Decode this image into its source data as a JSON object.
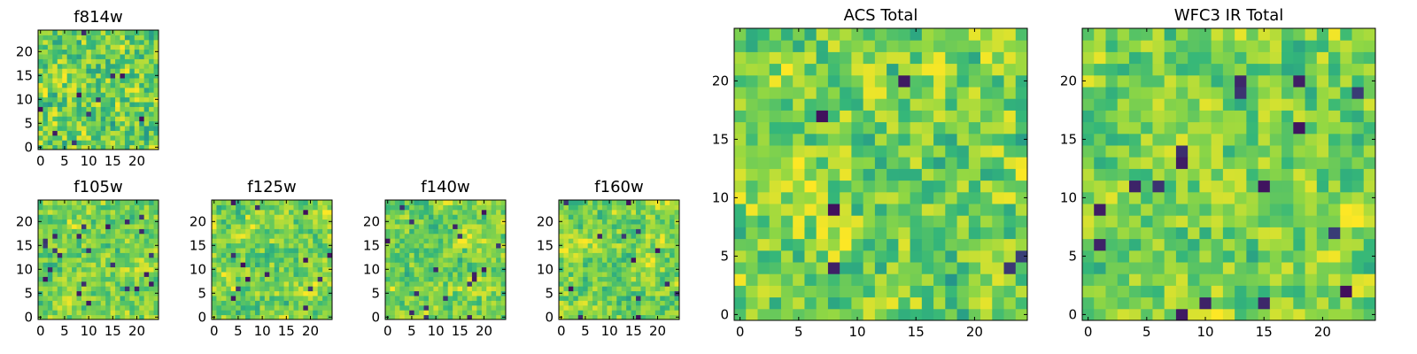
{
  "figure": {
    "type": "heatmap-grid",
    "colormap": "viridis",
    "palette": [
      "#440154",
      "#31688e",
      "#21908d",
      "#35b779",
      "#90d743",
      "#fde725"
    ]
  },
  "chart_data": [
    {
      "type": "heatmap",
      "title": "f814w",
      "grid_size": [
        25,
        25
      ],
      "xlim": [
        0,
        24
      ],
      "ylim": [
        0,
        24
      ],
      "xticks": [
        0,
        5,
        10,
        15,
        20
      ],
      "yticks": [
        0,
        5,
        10,
        15,
        20
      ],
      "value_range": [
        0,
        1
      ],
      "seed": 814,
      "texture": 0.55
    },
    {
      "type": "heatmap",
      "title": "f105w",
      "grid_size": [
        25,
        25
      ],
      "xlim": [
        0,
        24
      ],
      "ylim": [
        0,
        24
      ],
      "xticks": [
        0,
        5,
        10,
        15,
        20
      ],
      "yticks": [
        0,
        5,
        10,
        15,
        20
      ],
      "value_range": [
        0,
        1
      ],
      "seed": 105,
      "texture": 0.35
    },
    {
      "type": "heatmap",
      "title": "f125w",
      "grid_size": [
        25,
        25
      ],
      "xlim": [
        0,
        24
      ],
      "ylim": [
        0,
        24
      ],
      "xticks": [
        0,
        5,
        10,
        15,
        20
      ],
      "yticks": [
        0,
        5,
        10,
        15,
        20
      ],
      "value_range": [
        0,
        1
      ],
      "seed": 125,
      "texture": 0.35
    },
    {
      "type": "heatmap",
      "title": "f140w",
      "grid_size": [
        25,
        25
      ],
      "xlim": [
        0,
        24
      ],
      "ylim": [
        0,
        24
      ],
      "xticks": [
        0,
        5,
        10,
        15,
        20
      ],
      "yticks": [
        0,
        5,
        10,
        15,
        20
      ],
      "value_range": [
        0,
        1
      ],
      "seed": 140,
      "texture": 0.35
    },
    {
      "type": "heatmap",
      "title": "f160w",
      "grid_size": [
        25,
        25
      ],
      "xlim": [
        0,
        24
      ],
      "ylim": [
        0,
        24
      ],
      "xticks": [
        0,
        5,
        10,
        15,
        20
      ],
      "yticks": [
        0,
        5,
        10,
        15,
        20
      ],
      "value_range": [
        0,
        1
      ],
      "seed": 160,
      "texture": 0.35
    },
    {
      "type": "heatmap",
      "title": "ACS Total",
      "grid_size": [
        25,
        25
      ],
      "xlim": [
        0,
        24
      ],
      "ylim": [
        0,
        24
      ],
      "xticks": [
        0,
        5,
        10,
        15,
        20
      ],
      "yticks": [
        0,
        5,
        10,
        15,
        20
      ],
      "value_range": [
        0,
        1
      ],
      "seed": 901,
      "texture": 0.5
    },
    {
      "type": "heatmap",
      "title": "WFC3 IR Total",
      "grid_size": [
        25,
        25
      ],
      "xlim": [
        0,
        24
      ],
      "ylim": [
        0,
        24
      ],
      "xticks": [
        0,
        5,
        10,
        15,
        20
      ],
      "yticks": [
        0,
        5,
        10,
        15,
        20
      ],
      "value_range": [
        0,
        1
      ],
      "seed": 333,
      "texture": 0.4
    }
  ]
}
